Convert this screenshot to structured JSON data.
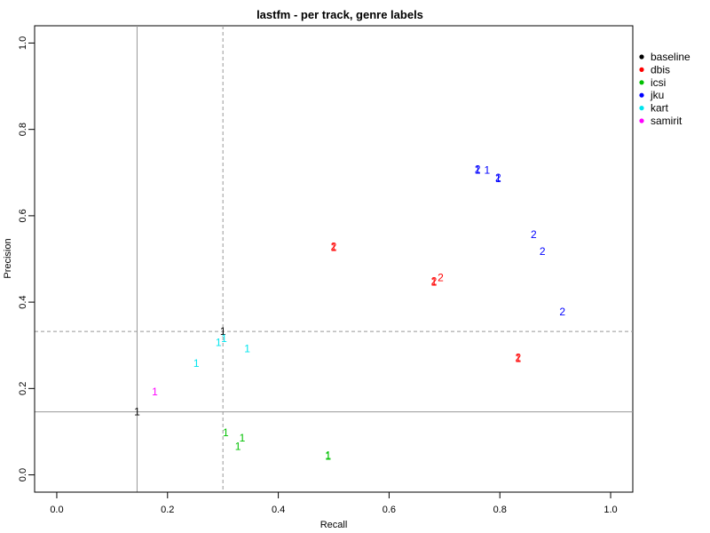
{
  "chart_data": {
    "type": "scatter",
    "title": "lastfm - per track, genre labels",
    "xlabel": "Recall",
    "ylabel": "Precision",
    "xlim": [
      -0.04,
      1.04
    ],
    "ylim": [
      -0.04,
      1.04
    ],
    "x_ticks": [
      "0.0",
      "0.2",
      "0.4",
      "0.6",
      "0.8",
      "1.0"
    ],
    "y_ticks": [
      "0.0",
      "0.2",
      "0.4",
      "0.6",
      "0.8",
      "1.0"
    ],
    "legend_position": "right",
    "reference_lines": {
      "solid": {
        "x": 0.145,
        "y": 0.146
      },
      "dashed": {
        "x": 0.3,
        "y": 0.332
      }
    },
    "series": [
      {
        "name": "baseline",
        "color": "#000000",
        "points": [
          {
            "x": 0.145,
            "y": 0.146,
            "label": "1"
          },
          {
            "x": 0.3,
            "y": 0.332,
            "label": "1"
          }
        ]
      },
      {
        "name": "dbis",
        "color": "#ff0000",
        "points": [
          {
            "x": 0.5,
            "y": 0.529,
            "label": "2"
          },
          {
            "x": 0.5,
            "y": 0.527,
            "label": "1"
          },
          {
            "x": 0.693,
            "y": 0.457,
            "label": "2"
          },
          {
            "x": 0.681,
            "y": 0.449,
            "label": "2"
          },
          {
            "x": 0.681,
            "y": 0.447,
            "label": "1"
          },
          {
            "x": 0.833,
            "y": 0.272,
            "label": "2"
          },
          {
            "x": 0.833,
            "y": 0.27,
            "label": "1"
          }
        ]
      },
      {
        "name": "icsi",
        "color": "#00c000",
        "points": [
          {
            "x": 0.305,
            "y": 0.098,
            "label": "1"
          },
          {
            "x": 0.335,
            "y": 0.086,
            "label": "1"
          },
          {
            "x": 0.327,
            "y": 0.066,
            "label": "1"
          },
          {
            "x": 0.49,
            "y": 0.045,
            "label": "1"
          },
          {
            "x": 0.49,
            "y": 0.043,
            "label": "1"
          }
        ]
      },
      {
        "name": "jku",
        "color": "#0000ff",
        "points": [
          {
            "x": 0.76,
            "y": 0.708,
            "label": "2"
          },
          {
            "x": 0.76,
            "y": 0.706,
            "label": "1"
          },
          {
            "x": 0.777,
            "y": 0.706,
            "label": "1"
          },
          {
            "x": 0.797,
            "y": 0.688,
            "label": "2"
          },
          {
            "x": 0.797,
            "y": 0.686,
            "label": "1"
          },
          {
            "x": 0.861,
            "y": 0.557,
            "label": "2"
          },
          {
            "x": 0.877,
            "y": 0.518,
            "label": "2"
          },
          {
            "x": 0.913,
            "y": 0.378,
            "label": "2"
          }
        ]
      },
      {
        "name": "kart",
        "color": "#00e5ee",
        "points": [
          {
            "x": 0.292,
            "y": 0.307,
            "label": "1"
          },
          {
            "x": 0.302,
            "y": 0.316,
            "label": "1"
          },
          {
            "x": 0.344,
            "y": 0.292,
            "label": "1"
          },
          {
            "x": 0.252,
            "y": 0.258,
            "label": "1"
          }
        ]
      },
      {
        "name": "samirit",
        "color": "#ff00ff",
        "points": [
          {
            "x": 0.177,
            "y": 0.192,
            "label": "1"
          }
        ]
      }
    ]
  }
}
